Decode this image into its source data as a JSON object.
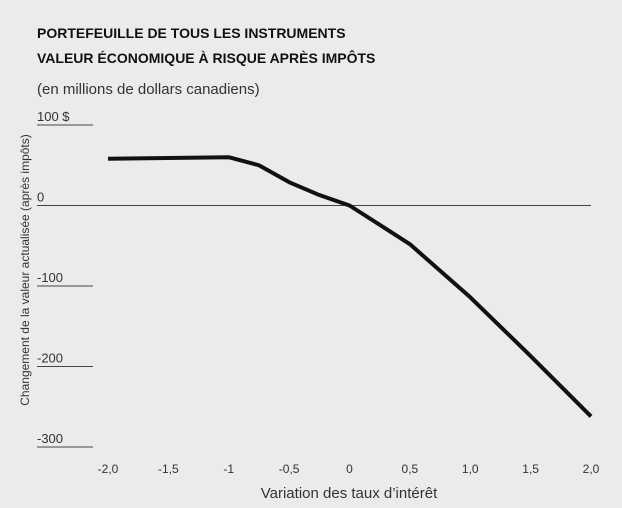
{
  "chart_data": {
    "type": "line",
    "title": [
      "PORTEFEUILLE DE TOUS LES INSTRUMENTS",
      "VALEUR ÉCONOMIQUE À RISQUE APRÈS IMPÔTS"
    ],
    "subtitle": "(en millions de dollars canadiens)",
    "y_label": "Changement de la valeur actualisée (après impôts)",
    "x_label": "Variation des taux d’intérêt",
    "x": [
      -2,
      -1,
      -0.75,
      -0.5,
      -0.25,
      0,
      0.5,
      1,
      1.5,
      2
    ],
    "series": [
      {
        "color": "#111111",
        "values": [
          58,
          60,
          50,
          29,
          13,
          0,
          -48,
          -114,
          -187,
          -262
        ]
      }
    ],
    "xlim": [
      -2,
      2
    ],
    "xticks": [
      {
        "value": -2,
        "label": "-2,0"
      },
      {
        "value": -1.5,
        "label": "-1,5"
      },
      -1,
      {
        "value": -0.5,
        "label": "-0,5"
      },
      0,
      {
        "value": 0.5,
        "label": "0,5"
      },
      {
        "value": 1,
        "label": "1,0"
      },
      {
        "value": 1.5,
        "label": "1,5"
      },
      {
        "value": 2,
        "label": "2,0"
      }
    ],
    "ylim": [
      -300,
      100
    ],
    "yticks": [
      {
        "value": 100,
        "label": "100 $"
      },
      0,
      -100,
      -200,
      -300
    ]
  }
}
